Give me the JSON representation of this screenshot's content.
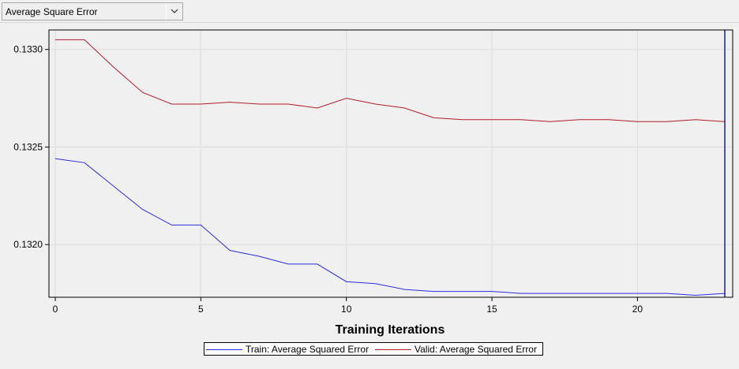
{
  "toolbar": {
    "selected_statistic": "Average Square Error"
  },
  "colors": {
    "train": "#2c2ce0",
    "valid": "#b01c2c",
    "marker": "#1a1ab8",
    "grid": "#dcdcdc",
    "plot_bg": "#f0f0f0"
  },
  "chart_data": {
    "type": "line",
    "xlabel": "Training Iterations",
    "ylabel": "",
    "xlim": [
      0,
      23
    ],
    "ylim": [
      0.13173,
      0.1331
    ],
    "xticks": [
      0,
      5,
      10,
      15,
      20
    ],
    "xtick_labels": [
      "0",
      "5",
      "10",
      "15",
      "20"
    ],
    "yticks": [
      0.132,
      0.1325,
      0.133
    ],
    "ytick_labels": [
      "0.1320",
      "0.1325",
      "0.1330"
    ],
    "grid": true,
    "selected_iteration": 23,
    "legend_position": "bottom-center",
    "series": [
      {
        "name": "Train: Average Squared Error",
        "x": [
          0,
          1,
          2,
          3,
          4,
          5,
          6,
          7,
          8,
          9,
          10,
          11,
          12,
          13,
          14,
          15,
          16,
          17,
          18,
          19,
          20,
          21,
          22,
          23
        ],
        "y": [
          0.13244,
          0.13242,
          0.1323,
          0.13218,
          0.1321,
          0.1321,
          0.13197,
          0.13194,
          0.1319,
          0.1319,
          0.13181,
          0.1318,
          0.13177,
          0.13176,
          0.13176,
          0.13176,
          0.13175,
          0.13175,
          0.13175,
          0.13175,
          0.13175,
          0.13175,
          0.13174,
          0.13175
        ]
      },
      {
        "name": "Valid: Average Squared Error",
        "x": [
          0,
          1,
          2,
          3,
          4,
          5,
          6,
          7,
          8,
          9,
          10,
          11,
          12,
          13,
          14,
          15,
          16,
          17,
          18,
          19,
          20,
          21,
          22,
          23
        ],
        "y": [
          0.13305,
          0.13305,
          0.13291,
          0.13278,
          0.13272,
          0.13272,
          0.13273,
          0.13272,
          0.13272,
          0.1327,
          0.13275,
          0.13272,
          0.1327,
          0.13265,
          0.13264,
          0.13264,
          0.13264,
          0.13263,
          0.13264,
          0.13264,
          0.13263,
          0.13263,
          0.13264,
          0.13263
        ]
      }
    ]
  }
}
